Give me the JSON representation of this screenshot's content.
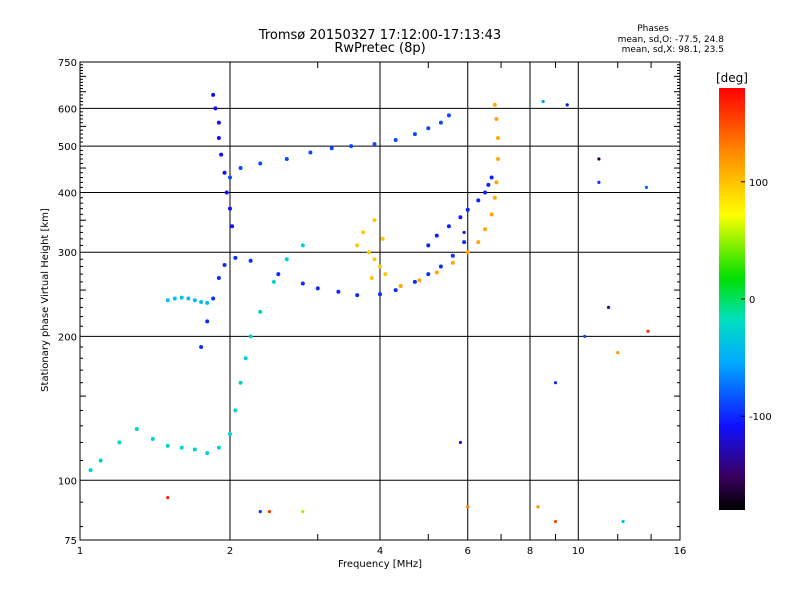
{
  "chart_data": {
    "type": "scatter",
    "title": "Tromsø 20150327 17:12:00-17:13:43",
    "subtitle": "RwPretec (8p)",
    "xlabel": "Frequency [MHz]",
    "ylabel": "Stationary phase Virtual Height [km]",
    "x_scale": "log",
    "y_scale": "log",
    "xlim": [
      1,
      16
    ],
    "ylim": [
      75,
      750
    ],
    "x_ticks": [
      1,
      2,
      4,
      6,
      8,
      10,
      16
    ],
    "x_tick_labels": [
      "1",
      "2",
      "4",
      "6",
      "8",
      "10",
      "16"
    ],
    "y_ticks": [
      75,
      100,
      200,
      300,
      400,
      500,
      600,
      750
    ],
    "y_tick_labels": [
      "75",
      "100",
      "200",
      "300",
      "400",
      "500",
      "600",
      "750"
    ],
    "grid": true,
    "phases_stats": {
      "heading": "Phases",
      "line_o": "mean, sd,O: -77.5, 24.8",
      "line_x": "mean, sd,X:  98.1, 23.5"
    },
    "colorbar": {
      "label": "[deg]",
      "range": [
        -180,
        180
      ],
      "ticks": [
        100,
        0,
        -100
      ],
      "tick_labels": [
        "100",
        "0",
        "-100"
      ]
    },
    "traces": [
      {
        "name": "",
        "phase": -100,
        "points": [
          [
            1.75,
            190
          ],
          [
            1.8,
            215
          ],
          [
            1.85,
            240
          ],
          [
            1.9,
            265
          ],
          [
            1.95,
            282
          ],
          [
            2.05,
            292
          ],
          [
            2.2,
            288
          ],
          [
            2.5,
            270
          ],
          [
            2.8,
            258
          ],
          [
            3.0,
            252
          ],
          [
            3.3,
            248
          ],
          [
            3.6,
            244
          ],
          [
            4.0,
            245
          ],
          [
            4.3,
            250
          ],
          [
            4.7,
            260
          ],
          [
            5.0,
            270
          ],
          [
            5.3,
            280
          ],
          [
            5.6,
            295
          ],
          [
            5.9,
            315
          ]
        ]
      },
      {
        "name": "",
        "phase": 110,
        "points": [
          [
            4.4,
            255
          ],
          [
            4.8,
            262
          ],
          [
            5.2,
            272
          ],
          [
            5.6,
            285
          ],
          [
            6.0,
            300
          ],
          [
            6.3,
            315
          ],
          [
            6.5,
            335
          ],
          [
            6.7,
            360
          ],
          [
            6.8,
            390
          ],
          [
            6.85,
            420
          ],
          [
            6.9,
            470
          ],
          [
            6.9,
            520
          ],
          [
            6.85,
            570
          ],
          [
            6.8,
            610
          ]
        ]
      },
      {
        "name": "",
        "phase": -30,
        "points": [
          [
            1.05,
            105
          ],
          [
            1.1,
            110
          ],
          [
            1.2,
            120
          ],
          [
            1.3,
            128
          ],
          [
            1.4,
            122
          ],
          [
            1.5,
            118
          ],
          [
            1.6,
            117
          ],
          [
            1.7,
            116
          ],
          [
            1.8,
            114
          ],
          [
            1.9,
            117
          ],
          [
            2.0,
            125
          ],
          [
            2.05,
            140
          ],
          [
            2.1,
            160
          ],
          [
            2.15,
            180
          ],
          [
            2.2,
            200
          ],
          [
            2.3,
            225
          ],
          [
            2.45,
            260
          ],
          [
            2.6,
            290
          ],
          [
            2.8,
            310
          ]
        ]
      },
      {
        "name": "",
        "phase": -90,
        "points": [
          [
            2.0,
            430
          ],
          [
            2.1,
            450
          ],
          [
            2.3,
            460
          ],
          [
            2.6,
            470
          ],
          [
            2.9,
            485
          ],
          [
            3.2,
            495
          ],
          [
            3.5,
            500
          ],
          [
            3.9,
            505
          ],
          [
            4.3,
            515
          ],
          [
            4.7,
            530
          ],
          [
            5.0,
            545
          ],
          [
            5.3,
            560
          ],
          [
            5.5,
            580
          ]
        ]
      },
      {
        "name": "",
        "phase": -105,
        "points": [
          [
            5.0,
            310
          ],
          [
            5.2,
            325
          ],
          [
            5.5,
            340
          ],
          [
            5.8,
            355
          ],
          [
            6.0,
            368
          ],
          [
            6.3,
            385
          ],
          [
            6.5,
            400
          ],
          [
            6.6,
            415
          ],
          [
            6.7,
            430
          ]
        ]
      },
      {
        "name": "",
        "phase": 95,
        "points": [
          [
            3.6,
            310
          ],
          [
            3.8,
            300
          ],
          [
            3.9,
            290
          ],
          [
            4.0,
            280
          ],
          [
            4.1,
            270
          ],
          [
            3.7,
            330
          ],
          [
            3.9,
            350
          ],
          [
            4.05,
            320
          ],
          [
            3.85,
            265
          ]
        ]
      },
      {
        "name": "",
        "phase": -40,
        "points": [
          [
            1.5,
            238
          ],
          [
            1.55,
            240
          ],
          [
            1.6,
            241
          ],
          [
            1.65,
            240
          ],
          [
            1.7,
            238
          ],
          [
            1.75,
            236
          ],
          [
            1.8,
            235
          ]
        ]
      },
      {
        "name": "",
        "phase": -110,
        "points": [
          [
            1.85,
            640
          ],
          [
            1.87,
            600
          ],
          [
            1.9,
            560
          ],
          [
            1.9,
            520
          ],
          [
            1.92,
            480
          ],
          [
            1.95,
            440
          ],
          [
            1.97,
            400
          ],
          [
            2.0,
            370
          ],
          [
            2.02,
            340
          ]
        ]
      }
    ],
    "isolated_points": [
      {
        "x": 8.5,
        "y": 620,
        "phase": -60
      },
      {
        "x": 9.5,
        "y": 610,
        "phase": -110
      },
      {
        "x": 11.0,
        "y": 470,
        "phase": -160
      },
      {
        "x": 11.0,
        "y": 420,
        "phase": -100
      },
      {
        "x": 13.7,
        "y": 410,
        "phase": -80
      },
      {
        "x": 10.3,
        "y": 200,
        "phase": -90
      },
      {
        "x": 11.5,
        "y": 230,
        "phase": -130
      },
      {
        "x": 12.0,
        "y": 185,
        "phase": 120
      },
      {
        "x": 13.8,
        "y": 205,
        "phase": 160
      },
      {
        "x": 9.0,
        "y": 160,
        "phase": -100
      },
      {
        "x": 5.9,
        "y": 330,
        "phase": -120
      },
      {
        "x": 5.8,
        "y": 120,
        "phase": -120
      },
      {
        "x": 6.0,
        "y": 88,
        "phase": 130
      },
      {
        "x": 8.3,
        "y": 88,
        "phase": 120
      },
      {
        "x": 9.0,
        "y": 82,
        "phase": 150
      },
      {
        "x": 12.3,
        "y": 82,
        "phase": -40
      },
      {
        "x": 1.5,
        "y": 92,
        "phase": 170
      },
      {
        "x": 2.3,
        "y": 86,
        "phase": -100
      },
      {
        "x": 2.4,
        "y": 86,
        "phase": 160
      },
      {
        "x": 2.8,
        "y": 86,
        "phase": 50
      }
    ]
  }
}
